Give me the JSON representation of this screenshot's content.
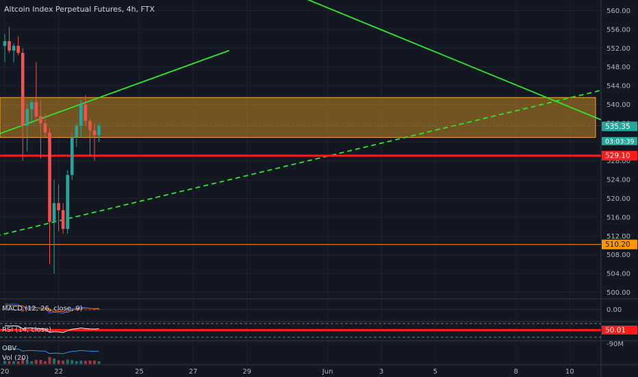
{
  "header": {
    "title": "Altcoin Index Perpetual Futures, 4h, FTX"
  },
  "colors": {
    "background": "#131722",
    "grid": "#1e2230",
    "candle_up": "#26a69a",
    "candle_down": "#ef5350",
    "trendline": "#2ee82e",
    "support_line": "#ff1a1a",
    "zone_fill": "#f5a623",
    "level_orange": "#ff9800",
    "price_tag": "#26a69a"
  },
  "chart_data": {
    "type": "candlestick",
    "title": "Altcoin Index Perpetual Futures, 4h, FTX",
    "ylim": [
      497,
      562
    ],
    "y_ticks": [
      500,
      504,
      508,
      512,
      516,
      520,
      524,
      528,
      532,
      536,
      540,
      544,
      548,
      552,
      556,
      560
    ],
    "y_tick_labels": [
      "500.00",
      "504.00",
      "508.00",
      "512.00",
      "516.00",
      "520.00",
      "524.00",
      "528.00",
      "532.00",
      "536.00",
      "540.00",
      "544.00",
      "548.00",
      "552.00",
      "556.00",
      "560.00"
    ],
    "x_ticks": [
      {
        "label": "20",
        "t": 0
      },
      {
        "label": "22",
        "t": 12
      },
      {
        "label": "25",
        "t": 30
      },
      {
        "label": "27",
        "t": 42
      },
      {
        "label": "29",
        "t": 54
      },
      {
        "label": "Jun",
        "t": 72
      },
      {
        "label": "3",
        "t": 84
      },
      {
        "label": "5",
        "t": 96
      },
      {
        "label": "8",
        "t": 114
      },
      {
        "label": "10",
        "t": 126
      }
    ],
    "candles": [
      {
        "t": 0,
        "o": 552.5,
        "h": 555.0,
        "l": 549.0,
        "c": 553.5
      },
      {
        "t": 1,
        "o": 553.5,
        "h": 556.5,
        "l": 551.0,
        "c": 551.5
      },
      {
        "t": 2,
        "o": 551.5,
        "h": 553.0,
        "l": 549.0,
        "c": 552.5
      },
      {
        "t": 3,
        "o": 552.5,
        "h": 554.5,
        "l": 550.5,
        "c": 551.0
      },
      {
        "t": 4,
        "o": 551.0,
        "h": 552.0,
        "l": 528.0,
        "c": 535.5
      },
      {
        "t": 5,
        "o": 535.5,
        "h": 540.0,
        "l": 530.0,
        "c": 539.0
      },
      {
        "t": 6,
        "o": 539.0,
        "h": 541.0,
        "l": 536.0,
        "c": 540.5
      },
      {
        "t": 7,
        "o": 540.5,
        "h": 549.0,
        "l": 536.5,
        "c": 537.5
      },
      {
        "t": 8,
        "o": 537.5,
        "h": 541.0,
        "l": 528.5,
        "c": 536.0
      },
      {
        "t": 9,
        "o": 536.0,
        "h": 538.0,
        "l": 533.0,
        "c": 534.0
      },
      {
        "t": 10,
        "o": 534.0,
        "h": 535.0,
        "l": 506.0,
        "c": 515.0
      },
      {
        "t": 11,
        "o": 515.0,
        "h": 524.0,
        "l": 504.0,
        "c": 519.0
      },
      {
        "t": 12,
        "o": 519.0,
        "h": 523.0,
        "l": 513.0,
        "c": 517.5
      },
      {
        "t": 13,
        "o": 517.5,
        "h": 519.0,
        "l": 512.5,
        "c": 513.5
      },
      {
        "t": 14,
        "o": 513.5,
        "h": 526.0,
        "l": 512.5,
        "c": 525.0
      },
      {
        "t": 15,
        "o": 525.0,
        "h": 534.0,
        "l": 524.0,
        "c": 533.0
      },
      {
        "t": 16,
        "o": 533.0,
        "h": 536.0,
        "l": 531.0,
        "c": 535.5
      },
      {
        "t": 17,
        "o": 535.5,
        "h": 541.0,
        "l": 533.0,
        "c": 540.0
      },
      {
        "t": 18,
        "o": 540.0,
        "h": 542.0,
        "l": 535.5,
        "c": 536.5
      },
      {
        "t": 19,
        "o": 536.5,
        "h": 537.0,
        "l": 529.0,
        "c": 534.5
      },
      {
        "t": 20,
        "o": 534.5,
        "h": 536.0,
        "l": 528.0,
        "c": 533.5
      },
      {
        "t": 21,
        "o": 533.5,
        "h": 536.0,
        "l": 532.0,
        "c": 535.5
      }
    ],
    "zone": {
      "from": 533.0,
      "to": 541.5
    },
    "lines": [
      {
        "kind": "trendline",
        "style": "solid",
        "from": {
          "t": -2,
          "y": 533.5
        },
        "to": {
          "t": 50,
          "y": 551.5
        }
      },
      {
        "kind": "trendline",
        "style": "solid",
        "from": {
          "t": 2,
          "y": 588.0
        },
        "to": {
          "t": 140,
          "y": 534.0
        }
      },
      {
        "kind": "trendline",
        "style": "dashed",
        "from": {
          "t": -2,
          "y": 512.0
        },
        "to": {
          "t": 135,
          "y": 543.5
        }
      },
      {
        "kind": "horizontal",
        "style": "solid",
        "y": 529.1,
        "width": 3
      },
      {
        "kind": "horizontal",
        "style": "solid",
        "y": 510.2,
        "width": 1
      }
    ],
    "price_labels": [
      {
        "value": "535.35",
        "kind": "last_price",
        "y": 535.35
      },
      {
        "value": "03:03:39",
        "kind": "countdown",
        "y": 532.2
      },
      {
        "value": "529.10",
        "kind": "support",
        "y": 529.1
      },
      {
        "value": "510.20",
        "kind": "level",
        "y": 510.2
      }
    ],
    "indicators": [
      {
        "name": "MACD (12, 26, close, 9)",
        "axis_label": "0.00"
      },
      {
        "name": "RSI (14, close)",
        "axis_label": "50.01"
      },
      {
        "name": "OBV",
        "axis_label": "-90M"
      },
      {
        "name": "Vol (20)",
        "axis_label": ""
      }
    ]
  }
}
